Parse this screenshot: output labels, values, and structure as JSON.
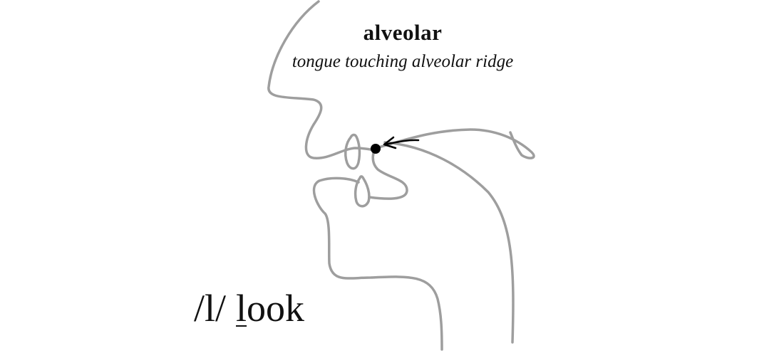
{
  "heading": {
    "place": "alveolar",
    "description": "tongue touching alveolar ridge"
  },
  "example": {
    "phoneme": "/l/",
    "word_highlight": "l",
    "word_rest": "ook"
  },
  "colors": {
    "outline": "#9e9e9e",
    "marker": "#000000",
    "text": "#111111"
  },
  "icons": {
    "contact_point": "filled-dot",
    "direction": "curved-arrow"
  }
}
